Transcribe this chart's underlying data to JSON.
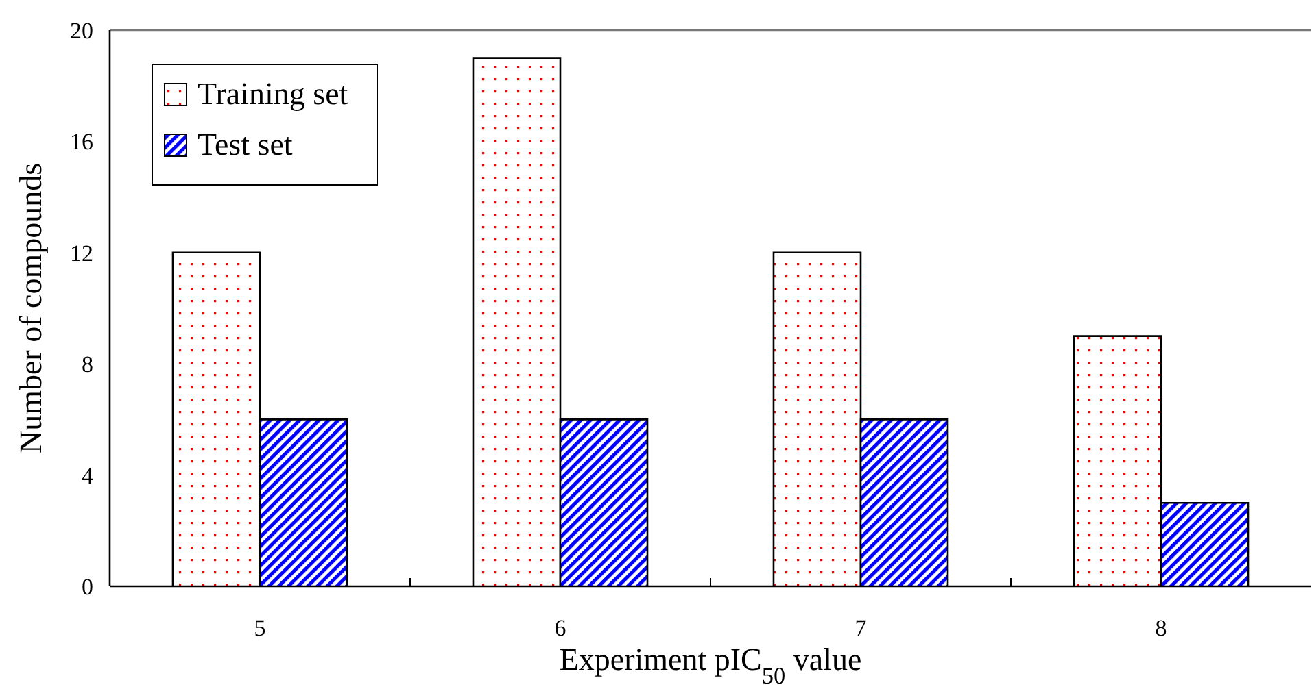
{
  "chart_data": {
    "type": "bar",
    "xlabel": "Experiment pIC$_{50}$ value",
    "ylabel": "Number of compounds",
    "categories": [
      "5",
      "6",
      "7",
      "8"
    ],
    "series": [
      {
        "name": "Training set",
        "color": "#ff0000",
        "values": [
          12,
          19,
          12,
          9
        ]
      },
      {
        "name": "Test set",
        "color": "#0000ff",
        "values": [
          6,
          6,
          6,
          3
        ]
      }
    ],
    "ylim": [
      0,
      20
    ],
    "yticks": [
      0,
      4,
      8,
      12,
      16,
      20
    ],
    "legend": "top left",
    "grid": false
  }
}
